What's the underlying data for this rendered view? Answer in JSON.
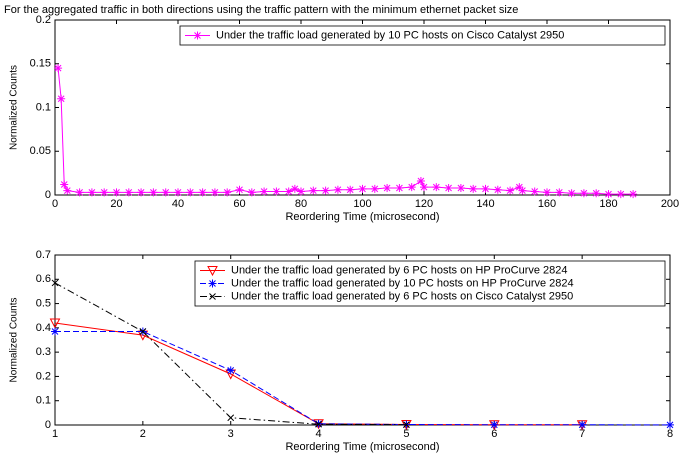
{
  "chart_data": [
    {
      "type": "line",
      "title": "For the aggregated traffic in both directions using the traffic pattern with the minimum ethernet packet size",
      "x_label": "Reordering Time (microsecond)",
      "y_label": "Normalized Counts",
      "x": [
        1,
        2,
        3,
        4,
        8,
        12,
        16,
        20,
        24,
        28,
        32,
        36,
        40,
        44,
        48,
        52,
        56,
        60,
        64,
        68,
        72,
        76,
        78,
        80,
        84,
        88,
        92,
        96,
        100,
        104,
        108,
        112,
        116,
        119,
        120,
        124,
        128,
        132,
        136,
        140,
        144,
        148,
        151,
        152,
        156,
        160,
        164,
        168,
        172,
        176,
        180,
        184,
        188
      ],
      "series": [
        {
          "name": "Under the traffic load generated by 10 PC hosts on Cisco Catalyst 2950",
          "color": "#ff00ff",
          "marker": "star",
          "dash": "solid",
          "values": [
            0.145,
            0.11,
            0.012,
            0.005,
            0.003,
            0.003,
            0.003,
            0.003,
            0.003,
            0.003,
            0.003,
            0.003,
            0.003,
            0.003,
            0.003,
            0.003,
            0.003,
            0.006,
            0.003,
            0.004,
            0.004,
            0.004,
            0.007,
            0.004,
            0.005,
            0.005,
            0.006,
            0.006,
            0.007,
            0.007,
            0.008,
            0.008,
            0.009,
            0.016,
            0.009,
            0.009,
            0.008,
            0.008,
            0.007,
            0.007,
            0.006,
            0.005,
            0.009,
            0.005,
            0.004,
            0.003,
            0.003,
            0.002,
            0.002,
            0.002,
            0.001,
            0.001,
            0.001
          ]
        }
      ],
      "xlim": [
        0,
        200
      ],
      "xticks": [
        0,
        20,
        40,
        60,
        80,
        100,
        120,
        140,
        160,
        180,
        200
      ],
      "ylim": [
        0,
        0.2
      ],
      "yticks": [
        0,
        0.05,
        0.1,
        0.15,
        0.2
      ],
      "legend": "upper right"
    },
    {
      "type": "line",
      "x_label": "Reordering Time (microsecond)",
      "y_label": "Normalized Counts",
      "x": [
        1,
        2,
        3,
        4,
        5,
        6,
        7,
        8
      ],
      "series": [
        {
          "name": "Under the traffic load generated by 6 PC hosts on HP ProCurve 2824",
          "color": "#ff0000",
          "marker": "triangle-down",
          "dash": "solid",
          "values": [
            0.42,
            0.37,
            0.21,
            0.005,
            0.002,
            0.001,
            0.001,
            null
          ]
        },
        {
          "name": "Under the traffic load generated by 10 PC hosts on HP ProCurve 2824",
          "color": "#0000ff",
          "marker": "star",
          "dash": "dashed",
          "values": [
            0.385,
            0.385,
            0.225,
            0.005,
            0.002,
            0.001,
            0.001,
            0.0005
          ]
        },
        {
          "name": "Under the traffic load generated by 6 PC hosts on Cisco Catalyst 2950",
          "color": "#000000",
          "marker": "x",
          "dash": "dashdot",
          "values": [
            0.585,
            0.385,
            0.03,
            0.003,
            0.001,
            null,
            null,
            null
          ]
        }
      ],
      "xlim": [
        1,
        8
      ],
      "xticks": [
        1,
        2,
        3,
        4,
        5,
        6,
        7,
        8
      ],
      "ylim": [
        0,
        0.7
      ],
      "yticks": [
        0,
        0.1,
        0.2,
        0.3,
        0.4,
        0.5,
        0.6,
        0.7
      ],
      "legend": "upper right"
    }
  ]
}
